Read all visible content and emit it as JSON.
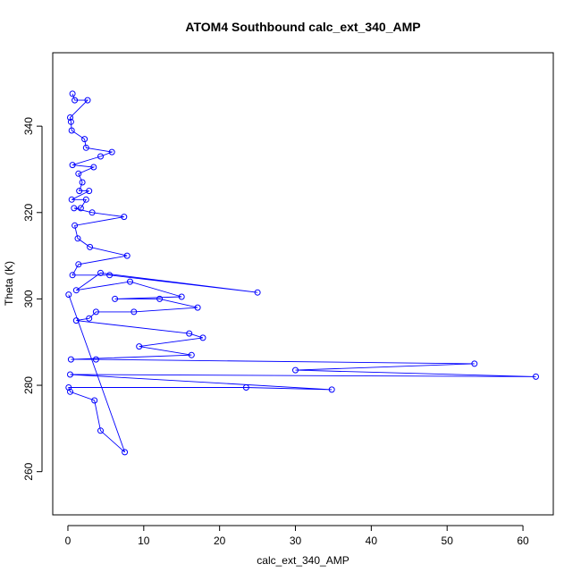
{
  "chart_data": {
    "type": "line",
    "title": "ATOM4 Southbound calc_ext_340_AMP",
    "xlabel": "calc_ext_340_AMP",
    "ylabel": "Theta (K)",
    "xlim": [
      -2,
      64
    ],
    "ylim": [
      250,
      357
    ],
    "xticks": [
      0,
      10,
      20,
      30,
      40,
      50,
      60
    ],
    "yticks": [
      260,
      280,
      300,
      320,
      340
    ],
    "grid": false,
    "legend": "none",
    "series": [
      {
        "color": "#0000ff",
        "marker": "open-circle",
        "points": [
          [
            0.6,
            347.5
          ],
          [
            0.9,
            346
          ],
          [
            2.6,
            346
          ],
          [
            0.3,
            342
          ],
          [
            0.4,
            341
          ],
          [
            0.5,
            339
          ],
          [
            2.2,
            337
          ],
          [
            2.4,
            335
          ],
          [
            5.8,
            334
          ],
          [
            4.3,
            333
          ],
          [
            0.6,
            331
          ],
          [
            3.4,
            330.5
          ],
          [
            1.4,
            329
          ],
          [
            1.9,
            327
          ],
          [
            1.5,
            325
          ],
          [
            2.8,
            325
          ],
          [
            0.5,
            323
          ],
          [
            2.4,
            323
          ],
          [
            1.7,
            321
          ],
          [
            0.8,
            321
          ],
          [
            3.2,
            320
          ],
          [
            7.4,
            319
          ],
          [
            0.9,
            317
          ],
          [
            1.3,
            314
          ],
          [
            2.9,
            312
          ],
          [
            7.8,
            310
          ],
          [
            1.4,
            308
          ],
          [
            0.6,
            305.5
          ],
          [
            5.5,
            305.5
          ],
          [
            25.0,
            301.5
          ],
          [
            4.3,
            306
          ],
          [
            1.1,
            302
          ],
          [
            8.2,
            304
          ],
          [
            15.0,
            300.5
          ],
          [
            6.2,
            300
          ],
          [
            12.1,
            300
          ],
          [
            17.1,
            298
          ],
          [
            8.7,
            297
          ],
          [
            3.7,
            297
          ],
          [
            2.8,
            295.5
          ],
          [
            1.1,
            295
          ],
          [
            16.0,
            292
          ],
          [
            17.8,
            291
          ],
          [
            9.4,
            289
          ],
          [
            16.3,
            287
          ],
          [
            0.4,
            286
          ],
          [
            3.7,
            286
          ],
          [
            53.6,
            285
          ],
          [
            30.0,
            283.5
          ],
          [
            61.7,
            282
          ],
          [
            0.3,
            282.5
          ],
          [
            34.8,
            279
          ],
          [
            23.5,
            279.5
          ],
          [
            0.1,
            279.5
          ],
          [
            0.3,
            278.5
          ],
          [
            3.5,
            276.5
          ],
          [
            4.3,
            269.5
          ],
          [
            7.5,
            264.5
          ],
          [
            0.1,
            301
          ]
        ]
      }
    ]
  }
}
